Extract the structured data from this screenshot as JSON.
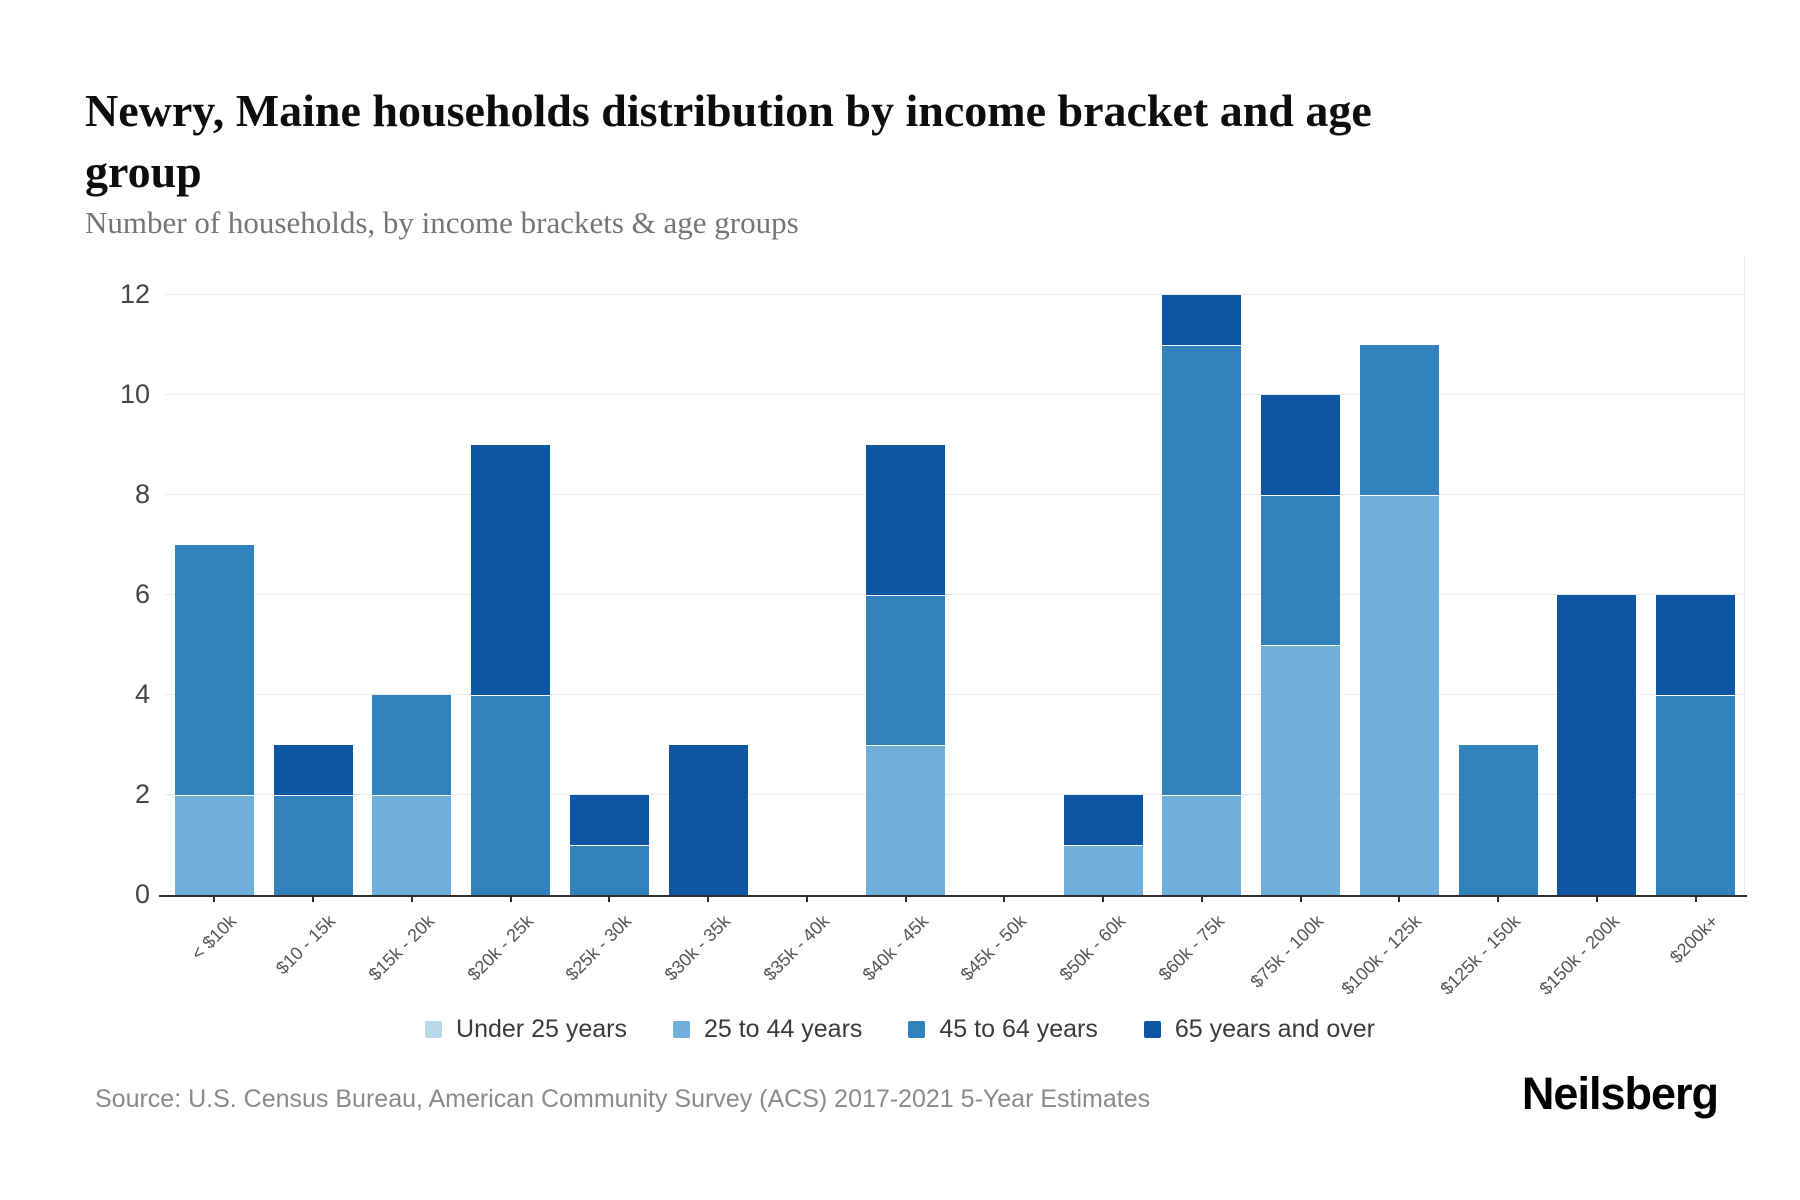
{
  "page": {
    "title": "Newry, Maine households distribution by income bracket and age group",
    "subtitle": "Number of households, by income brackets & age groups",
    "source": "Source: U.S. Census Bureau, American Community Survey (ACS) 2017-2021 5-Year Estimates",
    "brand": "Neilsberg"
  },
  "chart_data": {
    "type": "bar",
    "stacked": true,
    "title": "Newry, Maine households distribution by income bracket and age group",
    "subtitle": "Number of households, by income brackets & age groups",
    "xlabel": "",
    "ylabel": "",
    "ylim": [
      0,
      12.8
    ],
    "yticks": [
      0,
      2,
      4,
      6,
      8,
      10,
      12
    ],
    "grid": true,
    "legend_position": "bottom",
    "categories": [
      "< $10k",
      "$10 - 15k",
      "$15k - 20k",
      "$20k - 25k",
      "$25k - 30k",
      "$30k - 35k",
      "$35k - 40k",
      "$40k - 45k",
      "$45k - 50k",
      "$50k - 60k",
      "$60k - 75k",
      "$75k - 100k",
      "$100k - 125k",
      "$125k - 150k",
      "$150k - 200k",
      "$200k+"
    ],
    "series": [
      {
        "name": "Under 25 years",
        "color": "#b9d8ea",
        "values": [
          0,
          0,
          0,
          0,
          0,
          0,
          0,
          0,
          0,
          0,
          0,
          0,
          0,
          0,
          0,
          0
        ]
      },
      {
        "name": "25 to 44 years",
        "color": "#6fafd9",
        "values": [
          2,
          0,
          2,
          0,
          0,
          0,
          0,
          3,
          0,
          1,
          2,
          5,
          8,
          0,
          0,
          0
        ]
      },
      {
        "name": "45 to 64 years",
        "color": "#3181bd",
        "values": [
          5,
          2,
          2,
          4,
          1,
          0,
          0,
          3,
          0,
          0,
          9,
          3,
          3,
          3,
          0,
          4
        ]
      },
      {
        "name": "65 years and over",
        "color": "#0e56a4",
        "values": [
          0,
          1,
          0,
          5,
          1,
          3,
          0,
          3,
          0,
          1,
          1,
          2,
          0,
          0,
          6,
          2
        ]
      }
    ],
    "totals": [
      7,
      3,
      4,
      9,
      2,
      3,
      0,
      9,
      0,
      2,
      12,
      10,
      11,
      3,
      6,
      6
    ]
  }
}
